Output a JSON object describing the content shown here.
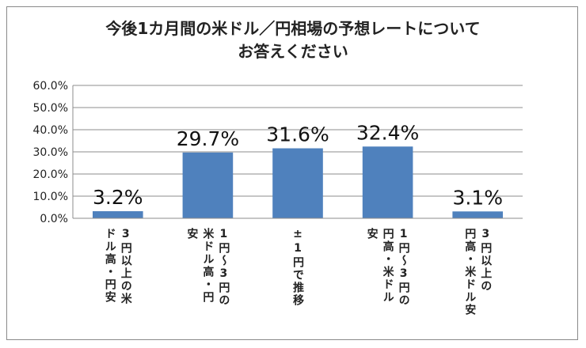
{
  "chart_data": {
    "type": "bar",
    "title": [
      "今後1カ月間の米ドル／円相場の予想レートについて",
      "お答えください"
    ],
    "categories": [
      [
        "3円以上の米",
        "ドル高・円安"
      ],
      [
        "1円～3円の",
        "米ドル高・円",
        "安"
      ],
      [
        "±1円で推移"
      ],
      [
        "1円～3円の",
        "円高・米ドル",
        "安"
      ],
      [
        "3円以上の",
        "円高・米ドル安"
      ]
    ],
    "values": [
      3.2,
      29.7,
      31.6,
      32.4,
      3.1
    ],
    "data_labels": [
      "3.2%",
      "29.7%",
      "31.6%",
      "32.4%",
      "3.1%"
    ],
    "ylim": [
      0,
      60
    ],
    "yticks": [
      "0.0%",
      "10.0%",
      "20.0%",
      "30.0%",
      "40.0%",
      "50.0%",
      "60.0%"
    ],
    "xlabel": "",
    "ylabel": "",
    "grid": true,
    "legend": "none",
    "colors": {
      "bar": "#4f81bd",
      "grid": "#8c8c8c",
      "axis": "#8c8c8c"
    }
  }
}
